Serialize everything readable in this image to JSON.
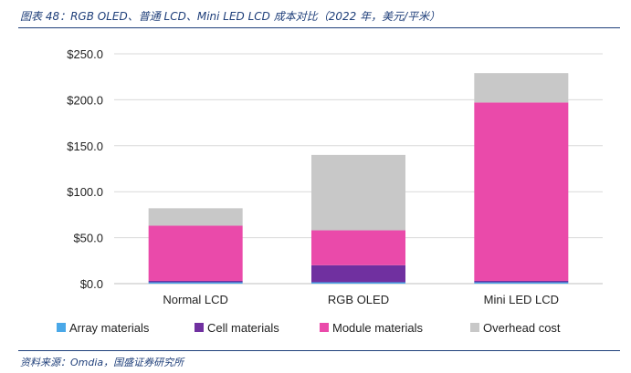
{
  "caption": "图表 48：RGB OLED、普通 LCD、Mini LED LCD 成本对比（2022 年，美元/平米）",
  "source": "资料来源：Omdia，国盛证券研究所",
  "chart_data": {
    "type": "bar",
    "stacked": true,
    "title": "",
    "xlabel": "",
    "ylabel": "",
    "ylim": [
      0,
      250
    ],
    "yticks": [
      "$0.0",
      "$50.0",
      "$100.0",
      "$150.0",
      "$200.0",
      "$250.0"
    ],
    "ytick_values": [
      0,
      50,
      100,
      150,
      200,
      250
    ],
    "grid": true,
    "legend_position": "bottom",
    "categories": [
      "Normal LCD",
      "RGB OLED",
      "Mini LED LCD"
    ],
    "series": [
      {
        "name": "Array materials",
        "color": "#4aa8e8",
        "values": [
          1.5,
          1.5,
          1.5
        ]
      },
      {
        "name": "Cell materials",
        "color": "#7030a0",
        "values": [
          1.5,
          18.5,
          1.5
        ]
      },
      {
        "name": "Module materials",
        "color": "#ea4aaa",
        "values": [
          60,
          38,
          194
        ]
      },
      {
        "name": "Overhead cost",
        "color": "#c8c8c8",
        "values": [
          19,
          82,
          32
        ]
      }
    ]
  }
}
